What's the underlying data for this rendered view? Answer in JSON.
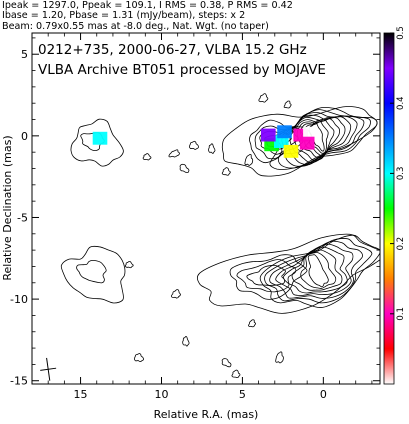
{
  "header": {
    "line1": "Ipeak = 1297.0, Ppeak = 109.1, I RMS = 0.38, P RMS = 0.42",
    "line2": "Ibase = 1.20, Pbase = 1.31 (mJy/beam), steps: x 2",
    "line3": "Beam: 0.79x0.55 mas at -8.0 deg., Nat. Wgt. (no taper)"
  },
  "chart_data": {
    "type": "contour",
    "title": "0212+735, 2000-06-27, VLBA 15.2 GHz",
    "subtitle": "VLBA Archive BT051 processed by MOJAVE",
    "xlabel": "Relative R.A. (mas)",
    "ylabel": "Relative Declination (mas)",
    "xlim": [
      18,
      -3.5
    ],
    "ylim": [
      -15.2,
      6.3
    ],
    "x_ticks": [
      15,
      10,
      5,
      0
    ],
    "x_tick_labels": [
      "15",
      "10",
      "5",
      "0"
    ],
    "y_ticks": [
      5,
      0,
      -5,
      -10,
      -15
    ],
    "y_tick_labels": [
      "5",
      "0",
      "-5",
      "-10",
      "-15"
    ],
    "colorbar": {
      "range": [
        0,
        0.5
      ],
      "ticks": [
        0.1,
        0.2,
        0.3,
        0.4,
        0.5
      ],
      "tick_labels": [
        "0.1",
        "0.2",
        "0.3",
        "0.4",
        "0.5"
      ],
      "colors": [
        "#ffffff",
        "#ff0000",
        "#ff00c0",
        "#ff8000",
        "#ffff00",
        "#00ff00",
        "#00ffff",
        "#0080ff",
        "#0000ff",
        "#8000ff",
        "#000000"
      ]
    },
    "panels": [
      {
        "name": "",
        "offset_y": 0,
        "core": {
          "x": 0.2,
          "y": -0.1,
          "rx_outer": 3.2,
          "ry_outer": 1.45,
          "angle_deg": -20,
          "levels": 10
        },
        "jet": {
          "x": 2.8,
          "y": -0.3,
          "rx": 1.9,
          "ry": 1.1,
          "levels": 4
        },
        "fractional_polarization": [
          {
            "x": 3.2,
            "y": -0.5,
            "value": 0.24
          },
          {
            "x": 2.6,
            "y": -0.3,
            "value": 0.28
          },
          {
            "x": 2.0,
            "y": -0.9,
            "value": 0.18
          },
          {
            "x": 1.4,
            "y": 0.1,
            "value": 0.1
          },
          {
            "x": 0.8,
            "y": 0.2,
            "value": 0.02
          },
          {
            "x": 3.4,
            "y": 0.1,
            "value": 0.44
          },
          {
            "x": 1.0,
            "y": -0.4,
            "value": 0.12
          },
          {
            "x": 2.4,
            "y": 0.3,
            "value": 0.33
          },
          {
            "x": 13.8,
            "y": -0.1,
            "value": 0.31
          }
        ],
        "knot": {
          "x": 14.0,
          "y": -0.5,
          "rx": 1.5,
          "ry": 1.3
        },
        "spots": [
          [
            10.9,
            -1.3
          ],
          [
            8.0,
            -0.6
          ],
          [
            8.6,
            -2.0
          ],
          [
            6.0,
            -2.2
          ],
          [
            6.9,
            -0.8
          ],
          [
            4.6,
            -1.5
          ],
          [
            2.2,
            1.9
          ],
          [
            3.7,
            2.3
          ],
          [
            9.2,
            -1.1
          ]
        ]
      },
      {
        "name": "",
        "offset_y": -8.3,
        "core": {
          "x": 0.2,
          "y": -8.4,
          "rx_outer": 3.6,
          "ry_outer": 1.7,
          "angle_deg": -20,
          "levels": 8
        },
        "jet": {
          "x": 3.4,
          "y": -8.6,
          "rx": 2.2,
          "ry": 1.2,
          "levels": 3
        },
        "knot": {
          "x": 14.0,
          "y": -8.5,
          "rx": 1.9,
          "ry": 1.6
        },
        "spots": [
          [
            12.0,
            -7.9
          ],
          [
            11.4,
            -13.6
          ],
          [
            6.0,
            -13.9
          ],
          [
            5.4,
            -14.6
          ],
          [
            8.5,
            -12.6
          ],
          [
            2.7,
            -13.6
          ],
          [
            4.4,
            -11.5
          ],
          [
            9.1,
            -9.7
          ]
        ]
      }
    ],
    "beam": {
      "x": 17.0,
      "y": -14.3,
      "major": 0.79,
      "minor": 0.55,
      "pa_deg": -8.0
    }
  }
}
